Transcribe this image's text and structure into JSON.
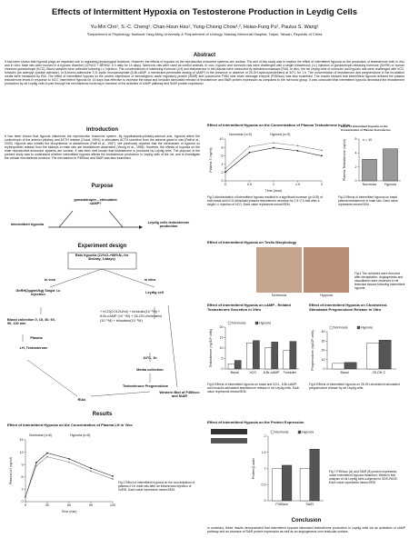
{
  "title": "Effects of Intermittent Hypoxia on Testosterone Production in Leydig Cells",
  "authors": "Yu-Min Cho¹, S.-C. Cheng¹, Chan-Hsun Hsu¹, Yung-Chiong Chow¹,², Hsiao-Fung Pu¹, Paulus S. Wang¹",
  "affiliations": "¹Department of Physiology, National Yang-Ming University & ²Department of Urology, Mackay Memorial Hospital, Taipei, Taiwan, Republic of China",
  "abstract": {
    "heading": "Abstract",
    "text": "It has been shown that hypoxia plays an important role in regulating physiological functions. However, the effects of hypoxia on the reproductive endocrine systems are unclear. The aim of this study was to explore the effect of intermittent hypoxia on the production of testosterone both in vivo and in vitro. Male rats were housed in a hypoxic chamber (12%O2 + 88%N2, 8 h daily for 14 days). Normoxic rats were used as control animals. In vivo, hypoxic and normoxic rats were challenged with a single intravenous (i.v.) injection of gonadotropin-releasing hormone (GnRH) or human chorionic gonadotropin (hCG). Blood samples were collected following i.v. injection. The concentrations of luteinizing hormone (LH) and testosterone in the plasma were measured by radioimmunoassays (RIA). In vitro, the rat Leydig cells of normoxic and hypoxic rats were challenged with hCG, forskolin (an adenylyl cyclase activator), or 8-bromo-adenosine 3',5'-cyclic monophosphate (8-Br-cAMP, a membrane-permeable analog of cAMP) in the presence or absence of 25-OH-hydroxycholesterol at 34°C for 1 h. The concentration of testosterone and pregnenolone in the incubation media were measured by RIA. The effect of intermittent hypoxia on the protein expression of steroidogenic acute regulatory protein (StAR) and cytochrome P450 side chain cleavage enzyme (P450scc) was also examined. The results showed that intermittent hypoxia reduced the plasma testosterone levels in response to hCG. Intermittent hypoxia for 14 days was effective to increase the basal and forskolin stimulated release of testosterone and StAR protein expression as compared to the normoxic group. It was concluded that intermittent hypoxia decreased the testosterone production by rat Leydig cells in part through the mechanisms involving in increase of the activities of cAMP pathway and StAR protein expression."
  },
  "introduction": {
    "heading": "Introduction",
    "text": "It has been shown that hypoxia influences the reproductive endocrine system. By hypothalamic-pituitary-adrenal axis, hypoxia alters the corticotropin of the anterior pituitary and ACTH release (Gozal, 1994); in stimulates ACTH secretion from the adrenal gland in rats (Raff et al., 2003). Hypoxia also inhibits the biosynthesis of aldosterone (Raff et al., 1987). We previously reported that the mechanism of hypoxia on erythropoietin release from the kidneys in male rats are testosterone-dependent (Yeung et al., 1996). However, the effects of hypoxia on the male reproductive-endocrine systems are unclear. It has been well known that testosterone is produced by Leydig cells. The purpose of the present study was to understand whether intermittent hypoxia affects the testosterone production in Leydig cells of the rat, and to investigate the cellular mechanisms involved. The mechanism in P450scc and StAR was also examined."
  },
  "purpose": {
    "heading": "Purpose",
    "cause": "intermittent hypoxia",
    "mediator": "gonadotropin→stimulated cAMP?",
    "effect": "Leydig cells testosterone production"
  },
  "design": {
    "heading": "Experiment design",
    "rats": "Rats hypoxia (12%O₂+88%N₂ for 8hr/day, 14days)",
    "invivo": "in vivo",
    "invitro": "in vitro",
    "gnrh": "GnRH(2µg/ml/kg) Single i.v. injection",
    "leydig": "Leydig cell",
    "blood": "Blood collection 0, 15, 30, 60, 90, 120 min",
    "plasma": "Plasma",
    "lh": "LH, Testosterone",
    "treatments": "+ hCG(0.012U/ml) + forskolin(10⁻⁵M) + 8-Br-cAMP (10⁻⁴M) + 25-OH-cholesterol (10⁻⁵M) + trilostane(10⁻⁶M)",
    "incubation": "34°C, 1h",
    "media": "Media collection",
    "steroids": "Testosterone Pregnenolone",
    "rias": "RIAs",
    "western": "Western Blot of P450scc and StAR"
  },
  "results": {
    "heading": "Results"
  },
  "conclusion": {
    "heading": "Conclusion",
    "text": "In summary, these results demonstrated that intermittent hypoxia stimulated testosterone production in Leydig cells via an activation of cAMP pathway and an increase of StAR protein expression as well as an angiogenesis over testicular surface."
  },
  "figures": [
    {
      "title": "Effect of Intermittent Hypoxia on the Concentration of Plasma LH in Vivo",
      "caption": "Fig.1 Effect of intermittent hypoxia on the concentration of plasma LH in male rats after an intravenous injection of GnRH. Each value represents mean±SEM.",
      "chart": {
        "type": "line",
        "x": [
          0,
          15,
          30,
          60,
          90,
          120
        ],
        "xlim": [
          0,
          120
        ],
        "xticks": [
          0,
          30,
          60,
          90,
          120
        ],
        "ylim": [
          0,
          15
        ],
        "yticks": [
          0,
          3,
          6,
          9,
          12,
          15
        ],
        "xlabel": "Time (min)",
        "ylabel": "Plasma LH (ng/ml)",
        "series": [
          {
            "name": "Normoxia (n=8)",
            "color": "#222222",
            "values": [
              1.2,
              9.5,
              11.8,
              10.4,
              8.1,
              6.2
            ]
          },
          {
            "name": "Hypoxia (n=8)",
            "color": "#888888",
            "values": [
              1.1,
              8.7,
              10.9,
              9.6,
              7.4,
              5.5
            ]
          }
        ]
      }
    },
    {
      "title": "Effect of Intermittent Hypoxia on the Concentration of Plasma Testosterone In Vivo",
      "caption": "Fig.2 Administration of intermittent hypoxia resulted in a significant increase (p<0.05) of both basal and hCG-stimulated plasma testosterone secretion by 1.5~2.0-fold after a single i.v. injection of hCG. Each value represents mean±SEM.",
      "chart": {
        "type": "line",
        "x": [
          0,
          0.5,
          1,
          1.5,
          2
        ],
        "xlim": [
          0,
          2
        ],
        "xticks": [
          0,
          0.5,
          1,
          1.5,
          2
        ],
        "ylim": [
          0,
          10
        ],
        "yticks": [
          0,
          2,
          4,
          6,
          8,
          10
        ],
        "xlabel": "Time (hour)",
        "ylabel": "Plasma T (ng/ml)",
        "series": [
          {
            "name": "Normoxia (n=9)",
            "color": "#222222",
            "values": [
              2.1,
              6.8,
              7.9,
              7.2,
              6.0
            ]
          },
          {
            "name": "Hypoxia (n=9)",
            "color": "#888888",
            "values": [
              3.0,
              8.2,
              9.1,
              8.4,
              7.3
            ]
          }
        ]
      }
    },
    {
      "title": "Effect of Intermittent Hypoxia on the Concentration of Plasma Testosterone",
      "caption": "Fig.3 Effects of intermittent hypoxia on basal plasma testosterone in male rats. Each value represents mean±SEM.",
      "chart": {
        "type": "bar",
        "categories": [
          "Normoxia",
          "Hypoxia"
        ],
        "values": [
          3.1,
          4.6
        ],
        "color": "#9a9a9a",
        "ylim": [
          0,
          6
        ],
        "yticks": [
          0,
          2,
          4,
          6
        ],
        "ylabel": "Plasma Testosterone (ng/ml)",
        "annotation": "n = 10"
      }
    },
    {
      "title": "Effect of Intermittent Hypoxia on Testis Morphology",
      "caption": "Fig.4 The rat testes were removed after decapitation. Angiogenesis and vasodilation were observed in rat testicular tissues following intermittent hypoxia.",
      "labels": [
        "Normoxia",
        "Hypoxia"
      ]
    },
    {
      "title": "Effect of Intermittent Hypoxia on cAMP - Related Testosterone Secretion in Vitro",
      "caption": "Fig.5 Effects of intermittent hypoxia on basal and hCG-, 8-Br-cAMP- and forskolin-stimulated testosterone release in rat Leydig cells. Each value represents mean±SEM.",
      "chart": {
        "type": "bar",
        "categories": [
          "Basal",
          "hCG",
          "8-Br-cAMP",
          "Forskolin"
        ],
        "ylim": [
          0,
          20
        ],
        "yticks": [
          0,
          5,
          10,
          15,
          20
        ],
        "ylabel": "Testosterone (ng/10⁵ cells)",
        "series": [
          {
            "name": "Normoxia",
            "color": "#ffffff",
            "values": [
              2.5,
              12.5,
              10.2,
              8.8
            ]
          },
          {
            "name": "Hypoxia",
            "color": "#555555",
            "values": [
              4.1,
              13.6,
              12.9,
              13.2
            ]
          }
        ]
      }
    },
    {
      "title": "Effect of Intermittent Hypoxia on Cholesterol- Stimulated Pregnenolone Release In Vitro",
      "caption": "Fig.6 Effects of intermittent hypoxia on 25-OH-cholesterol-stimulated pregnenolone release by rat Leydig cells.",
      "chart": {
        "type": "bar",
        "categories": [
          "Basal",
          "25-OH-C"
        ],
        "ylim": [
          0,
          40
        ],
        "yticks": [
          0,
          10,
          20,
          30,
          40
        ],
        "ylabel": "Pregnenolone (ng/10⁵ cells)",
        "series": [
          {
            "name": "Normoxia",
            "color": "#ffffff",
            "values": [
              6,
              28
            ]
          },
          {
            "name": "Hypoxia",
            "color": "#555555",
            "values": [
              7,
              31
            ]
          }
        ]
      }
    },
    {
      "title": "Effect of Intermittent Hypoxia on the Protein Expression",
      "caption": "Fig.7 P450scc (A) and StAR (B) protein expression under intermittent hypoxia treatment. Western blot analysis of rat Leydig cells subjected to SDS-PAGE. Each value represents mean±SEM.",
      "chart": {
        "type": "bar",
        "categories": [
          "P450scc",
          "StAR"
        ],
        "ylim": [
          0,
          2
        ],
        "yticks": [
          0,
          0.5,
          1,
          1.5,
          2
        ],
        "ylabel": "Protein/β-actin",
        "series": [
          {
            "name": "Normoxia",
            "color": "#ffffff",
            "values": [
              1.0,
              1.0
            ]
          },
          {
            "name": "Hypoxia",
            "color": "#555555",
            "values": [
              1.1,
              1.6
            ]
          }
        ]
      }
    }
  ]
}
